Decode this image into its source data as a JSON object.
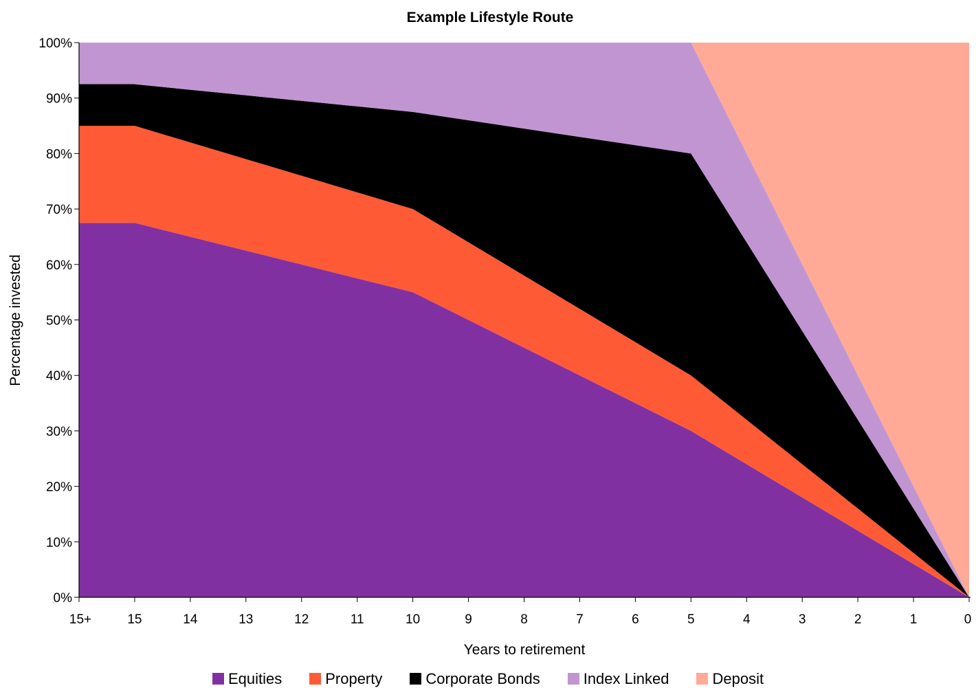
{
  "chart_data": {
    "type": "area",
    "stacked": true,
    "title": "Example Lifestyle Route",
    "xlabel": "Years to retirement",
    "ylabel": "Percentage invested",
    "categories": [
      "15+",
      "15",
      "14",
      "13",
      "12",
      "11",
      "10",
      "9",
      "8",
      "7",
      "6",
      "5",
      "4",
      "3",
      "2",
      "1",
      "0"
    ],
    "yticks": [
      "0%",
      "10%",
      "20%",
      "30%",
      "40%",
      "50%",
      "60%",
      "70%",
      "80%",
      "90%",
      "100%"
    ],
    "ylim": [
      0,
      100
    ],
    "grid": false,
    "legend_position": "bottom",
    "series": [
      {
        "name": "Equities",
        "color": "#8130A2",
        "values": [
          67.5,
          67.5,
          65,
          62.5,
          60,
          57.5,
          55,
          50,
          45,
          40,
          35,
          30,
          24,
          18,
          12,
          6,
          0
        ]
      },
      {
        "name": "Property",
        "color": "#FF5A36",
        "values": [
          17.5,
          17.5,
          17,
          16.5,
          16,
          15.5,
          15,
          14,
          13,
          12,
          11,
          10,
          8,
          6,
          4,
          2,
          0
        ]
      },
      {
        "name": "Corporate Bonds",
        "color": "#000000",
        "values": [
          7.5,
          7.5,
          9.5,
          11.5,
          13.5,
          15.5,
          17.5,
          22,
          26.5,
          31,
          35.5,
          40,
          32,
          24,
          16,
          8,
          0
        ]
      },
      {
        "name": "Index Linked",
        "color": "#C195D2",
        "values": [
          7.5,
          7.5,
          8.5,
          9.5,
          10.5,
          11.5,
          12.5,
          14,
          15.5,
          17,
          18.5,
          20,
          16,
          12,
          8,
          4,
          0
        ]
      },
      {
        "name": "Deposit",
        "color": "#FFA997",
        "values": [
          0,
          0,
          0,
          0,
          0,
          0,
          0,
          0,
          0,
          0,
          0,
          0,
          20,
          40,
          60,
          80,
          100
        ]
      }
    ]
  }
}
